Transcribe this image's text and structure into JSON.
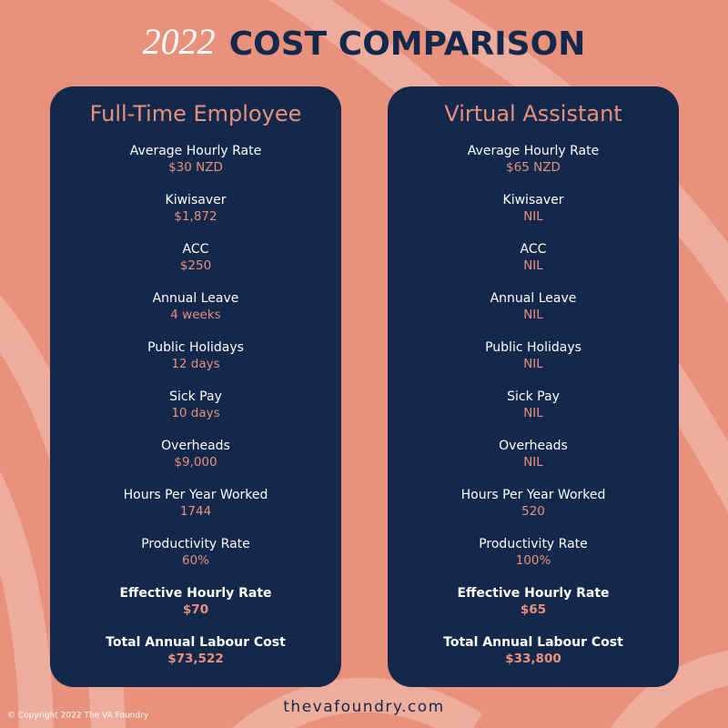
{
  "header": {
    "year": "2022",
    "title": "COST COMPARISON"
  },
  "columns": [
    {
      "title": "Full-Time Employee",
      "rows": [
        {
          "label": "Average Hourly Rate",
          "value": "$30 NZD"
        },
        {
          "label": "Kiwisaver",
          "value": "$1,872"
        },
        {
          "label": "ACC",
          "value": "$250"
        },
        {
          "label": "Annual Leave",
          "value": "4 weeks"
        },
        {
          "label": "Public Holidays",
          "value": "12 days"
        },
        {
          "label": "Sick Pay",
          "value": "10 days"
        },
        {
          "label": "Overheads",
          "value": "$9,000"
        },
        {
          "label": "Hours Per Year Worked",
          "value": "1744"
        },
        {
          "label": "Productivity Rate",
          "value": "60%"
        },
        {
          "label": "Effective Hourly Rate",
          "value": "$70",
          "bold": true
        },
        {
          "label": "Total Annual Labour Cost",
          "value": "$73,522",
          "bold": true
        }
      ]
    },
    {
      "title": "Virtual Assistant",
      "rows": [
        {
          "label": "Average Hourly Rate",
          "value": "$65 NZD"
        },
        {
          "label": "Kiwisaver",
          "value": "NIL"
        },
        {
          "label": "ACC",
          "value": "NIL"
        },
        {
          "label": "Annual Leave",
          "value": "NIL"
        },
        {
          "label": "Public Holidays",
          "value": "NIL"
        },
        {
          "label": "Sick Pay",
          "value": "NIL"
        },
        {
          "label": "Overheads",
          "value": "NIL"
        },
        {
          "label": "Hours Per Year Worked",
          "value": "520"
        },
        {
          "label": "Productivity Rate",
          "value": "100%"
        },
        {
          "label": "Effective Hourly Rate",
          "value": "$65",
          "bold": true
        },
        {
          "label": "Total Annual Labour Cost",
          "value": "$33,800",
          "bold": true
        }
      ]
    }
  ],
  "footer": {
    "copyright": "© Copyright 2022 The VA Foundry",
    "website": "thevafoundry.com"
  }
}
